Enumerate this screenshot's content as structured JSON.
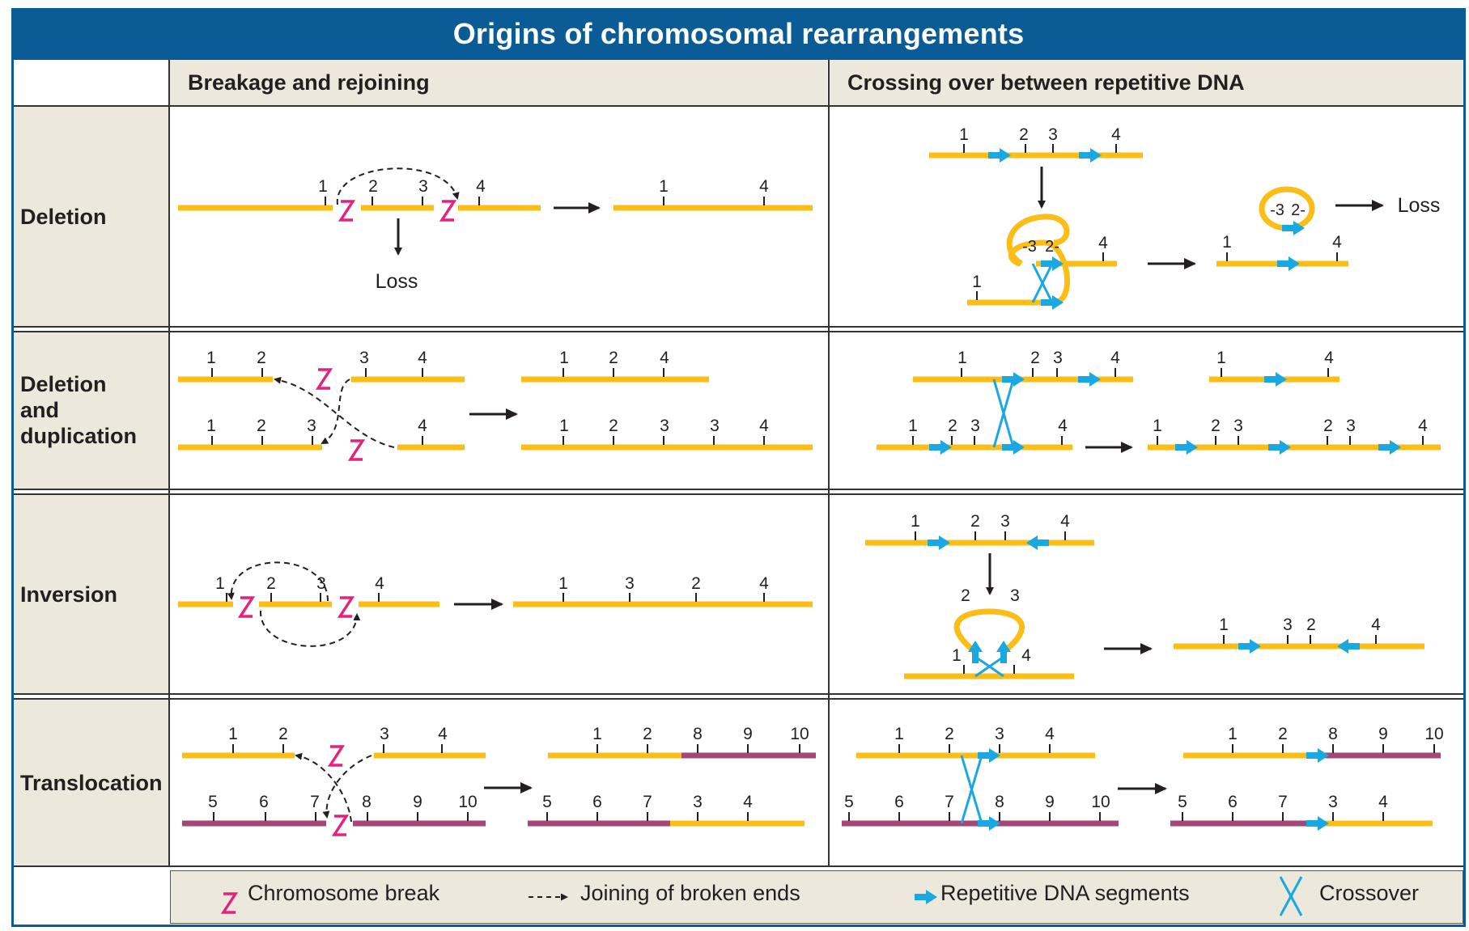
{
  "title": "Origins of chromosomal rearrangements",
  "columns": {
    "breakage": "Breakage and rejoining",
    "crossing": "Crossing over between repetitive DNA"
  },
  "rows": {
    "deletion": "Deletion",
    "deldup_1": "Deletion",
    "deldup_2": "and",
    "deldup_3": "duplication",
    "inversion": "Inversion",
    "translocation": "Translocation"
  },
  "loss_label": "Loss",
  "legend": {
    "break": "Chromosome break",
    "joining": "Joining of broken ends",
    "repetitive": "Repetitive DNA segments",
    "crossover": "Crossover"
  },
  "colors": {
    "header": "#0b5c96",
    "panel": "#ece8dc",
    "chromosome": "#fbbd16",
    "chromosome_alt": "#a24777",
    "break": "#e5217e",
    "repeat": "#1aa8e2"
  }
}
